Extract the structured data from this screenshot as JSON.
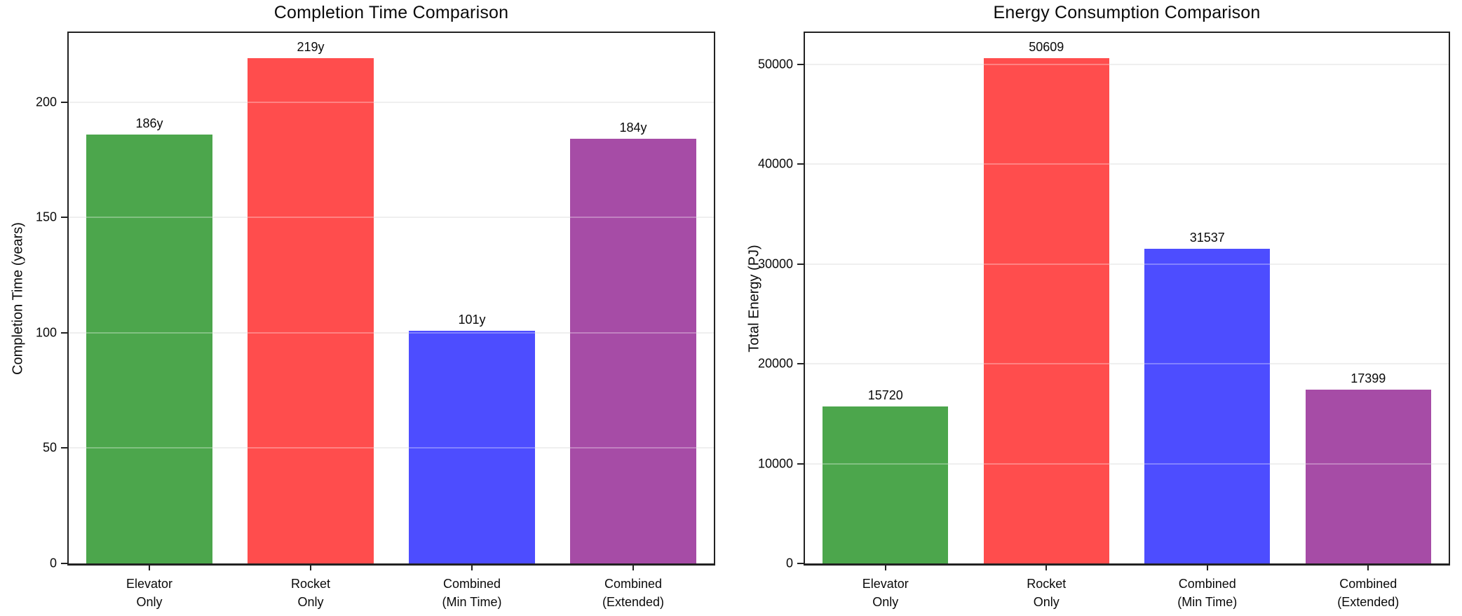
{
  "figure": {
    "background": "#ffffff",
    "text_color": "#0a0a0a",
    "spine_color": "#222222",
    "grid_color": "#e9e9e9"
  },
  "chart_data": [
    {
      "type": "bar",
      "title": "Completion Time Comparison",
      "xlabel": "",
      "ylabel": "Completion Time (years)",
      "categories": [
        "Elevator\nOnly",
        "Rocket\nOnly",
        "Combined\n(Min Time)",
        "Combined\n(Extended)"
      ],
      "values": [
        186,
        219,
        101,
        184
      ],
      "bar_labels": [
        "186y",
        "219y",
        "101y",
        "184y"
      ],
      "bar_colors": [
        "#4ca64c",
        "#ff4d4d",
        "#4d4dff",
        "#a64ca6"
      ],
      "yticks": [
        0,
        50,
        100,
        150,
        200
      ],
      "ylim": [
        0,
        230
      ],
      "grid": true,
      "legend": false
    },
    {
      "type": "bar",
      "title": "Energy Consumption Comparison",
      "xlabel": "",
      "ylabel": "Total Energy (PJ)",
      "categories": [
        "Elevator\nOnly",
        "Rocket\nOnly",
        "Combined\n(Min Time)",
        "Combined\n(Extended)"
      ],
      "values": [
        15720,
        50609,
        31537,
        17399
      ],
      "bar_labels": [
        "15720",
        "50609",
        "31537",
        "17399"
      ],
      "bar_colors": [
        "#4ca64c",
        "#ff4d4d",
        "#4d4dff",
        "#a64ca6"
      ],
      "yticks": [
        0,
        10000,
        20000,
        30000,
        40000,
        50000
      ],
      "ylim": [
        0,
        53140
      ],
      "grid": true,
      "legend": false
    }
  ]
}
